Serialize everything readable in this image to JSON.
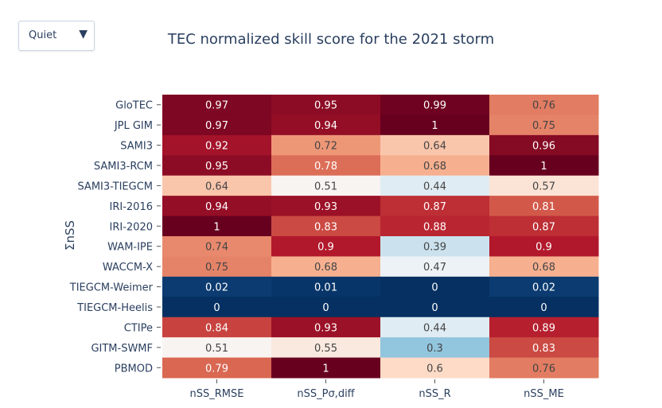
{
  "dropdown": {
    "selected": "Quiet",
    "arrow_icon": "triangle-down-icon"
  },
  "chart_data": {
    "type": "heatmap",
    "title": "TEC normalized skill score for the 2021 storm",
    "ylabel": "ΣnSS",
    "xlabel": "",
    "columns": [
      "nSS_RMSE",
      "nSS_Pσ,diff",
      "nSS_R",
      "nSS_ME"
    ],
    "rows": [
      "GloTEC",
      "JPL GIM",
      "SAMI3",
      "SAMI3-RCM",
      "SAMI3-TIEGCM",
      "IRI-2016",
      "IRI-2020",
      "WAM-IPE",
      "WACCM-X",
      "TIEGCM-Weimer",
      "TIEGCM-Heelis",
      "CTIPe",
      "GITM-SWMF",
      "PBMOD"
    ],
    "values": [
      [
        0.97,
        0.95,
        0.99,
        0.76
      ],
      [
        0.97,
        0.94,
        1,
        0.75
      ],
      [
        0.92,
        0.72,
        0.64,
        0.96
      ],
      [
        0.95,
        0.78,
        0.68,
        1
      ],
      [
        0.64,
        0.51,
        0.44,
        0.57
      ],
      [
        0.94,
        0.93,
        0.87,
        0.81
      ],
      [
        1,
        0.83,
        0.88,
        0.87
      ],
      [
        0.74,
        0.9,
        0.39,
        0.9
      ],
      [
        0.75,
        0.68,
        0.47,
        0.68
      ],
      [
        0.02,
        0.01,
        0,
        0.02
      ],
      [
        0,
        0,
        0,
        0
      ],
      [
        0.84,
        0.93,
        0.44,
        0.89
      ],
      [
        0.51,
        0.55,
        0.3,
        0.83
      ],
      [
        0.79,
        1,
        0.6,
        0.76
      ]
    ],
    "zrange": [
      0,
      1
    ],
    "colorscale": "RdBu reversed (blue low, red high)"
  }
}
